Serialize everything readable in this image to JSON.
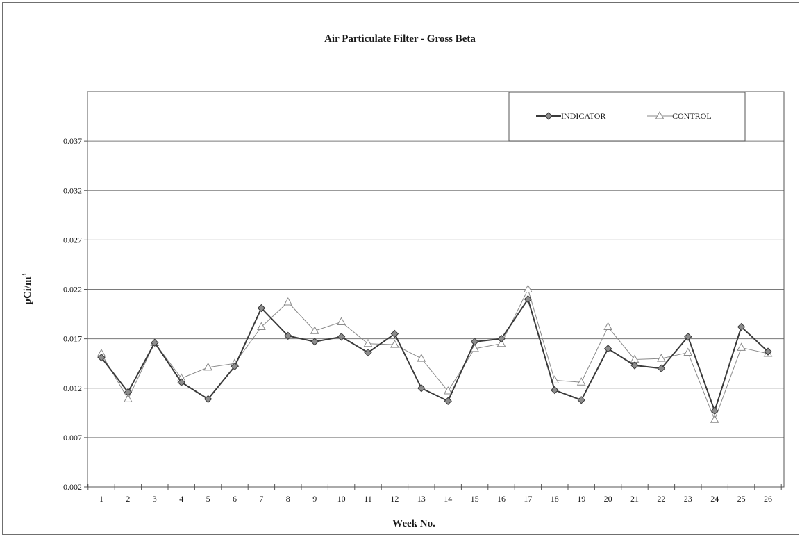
{
  "chart_data": {
    "type": "line",
    "title": "Air Particulate Filter - Gross Beta",
    "xlabel": "Week No.",
    "ylabel": "pCi/m",
    "ylabel_superscript": "3",
    "categories": [
      "1",
      "2",
      "3",
      "4",
      "5",
      "6",
      "7",
      "8",
      "9",
      "10",
      "11",
      "12",
      "13",
      "14",
      "15",
      "16",
      "17",
      "18",
      "19",
      "20",
      "21",
      "22",
      "23",
      "24",
      "25",
      "26"
    ],
    "ylim": [
      0.002,
      0.042
    ],
    "yticks": [
      "0.002",
      "0.007",
      "0.012",
      "0.017",
      "0.022",
      "0.027",
      "0.032",
      "0.037"
    ],
    "grid": true,
    "legend": "top-right",
    "series": [
      {
        "name": "INDICATOR",
        "marker": "diamond",
        "color": "#3a3a3a",
        "values": [
          0.0151,
          0.0116,
          0.0166,
          0.0126,
          0.0109,
          0.0142,
          0.0201,
          0.0173,
          0.0167,
          0.0172,
          0.0156,
          0.0175,
          0.012,
          0.0107,
          0.0167,
          0.017,
          0.021,
          0.0118,
          0.0108,
          0.016,
          0.0143,
          0.014,
          0.0172,
          0.0097,
          0.0182,
          0.0157
        ]
      },
      {
        "name": "CONTROL",
        "marker": "triangle",
        "color": "#8a8a8a",
        "values": [
          0.0155,
          0.0109,
          0.0166,
          0.013,
          0.0141,
          0.0145,
          0.0182,
          0.0207,
          0.0178,
          0.0187,
          0.0165,
          0.0164,
          0.015,
          0.0117,
          0.016,
          0.0165,
          0.022,
          0.0128,
          0.0126,
          0.0182,
          0.0149,
          0.015,
          0.0156,
          0.0088,
          0.0161,
          0.0155
        ]
      }
    ]
  }
}
